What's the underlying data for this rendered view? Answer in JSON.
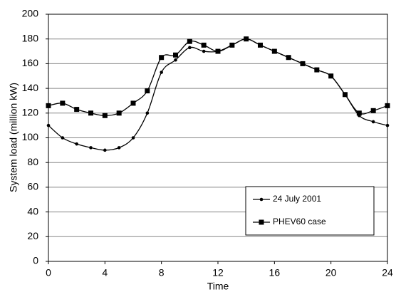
{
  "chart_data": {
    "type": "line",
    "x_label": "Time",
    "y_label": "System load (million kW)",
    "x": [
      0,
      1,
      2,
      3,
      4,
      5,
      6,
      7,
      8,
      9,
      10,
      11,
      12,
      13,
      14,
      15,
      16,
      17,
      18,
      19,
      20,
      21,
      22,
      23,
      24
    ],
    "series": [
      {
        "name": "24 July 2001",
        "color": "#000000",
        "marker": "circle",
        "values": [
          110,
          100,
          95,
          92,
          90,
          92,
          100,
          120,
          153,
          163,
          173,
          170,
          170,
          175,
          180,
          175,
          170,
          165,
          160,
          155,
          150,
          135,
          118,
          113,
          110
        ]
      },
      {
        "name": "PHEV60 case",
        "color": "#000000",
        "marker": "square",
        "values": [
          126,
          128,
          123,
          120,
          118,
          120,
          128,
          138,
          165,
          167,
          178,
          175,
          170,
          175,
          180,
          175,
          170,
          165,
          160,
          155,
          150,
          135,
          120,
          122,
          126
        ]
      }
    ],
    "xlim": [
      0,
      24
    ],
    "xticks": [
      0,
      4,
      8,
      12,
      16,
      20,
      24
    ],
    "ylim": [
      0,
      200
    ],
    "yticks": [
      0,
      20,
      40,
      60,
      80,
      100,
      120,
      140,
      160,
      180,
      200
    ],
    "grid": true,
    "legend": "lower right"
  }
}
